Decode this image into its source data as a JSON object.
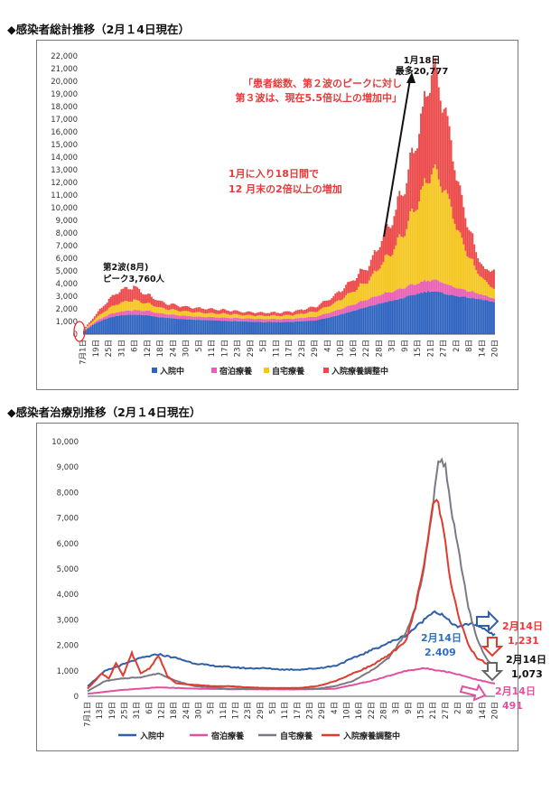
{
  "chart_data": [
    {
      "type": "bar",
      "stacked": true,
      "section_title": "◆感染者総計推移（2月１4日現在）",
      "x_tick_labels": [
        "7月1日",
        "19日",
        "25日",
        "31日",
        "6日",
        "12日",
        "18日",
        "24日",
        "30日",
        "5日",
        "11日",
        "17日",
        "23日",
        "29日",
        "5日",
        "11日",
        "17日",
        "23日",
        "29日",
        "4日",
        "10日",
        "16日",
        "22日",
        "28日",
        "3日",
        "9日",
        "15日",
        "21日",
        "27日",
        "2日",
        "8日",
        "14日",
        "20日"
      ],
      "y_ticks": [
        "0",
        "1,000",
        "2,000",
        "3,000",
        "4,000",
        "5,000",
        "6,000",
        "7,000",
        "8,000",
        "9,000",
        "10,000",
        "11,000",
        "12,000",
        "13,000",
        "14,000",
        "15,000",
        "16,000",
        "17,000",
        "18,000",
        "19,000",
        "20,000",
        "21,000",
        "22,000"
      ],
      "ylim": [
        0,
        22000
      ],
      "series": [
        {
          "name": "入院中",
          "color": "#2e64c0"
        },
        {
          "name": "宿泊療養",
          "color": "#e85fb4"
        },
        {
          "name": "自宅療養",
          "color": "#f4c61f"
        },
        {
          "name": "入院療養調整中",
          "color": "#ec4a4a"
        }
      ],
      "profile": {
        "x": [
          0,
          7,
          14,
          21,
          28,
          35,
          45,
          60,
          70,
          80,
          90,
          100,
          110,
          120,
          130,
          140,
          150,
          160,
          168,
          175,
          182,
          190,
          195,
          200,
          205,
          210,
          215,
          220,
          225,
          230
        ],
        "hospital": [
          250,
          900,
          1300,
          1500,
          1550,
          1500,
          1300,
          1150,
          1100,
          1050,
          1000,
          950,
          950,
          1000,
          1100,
          1400,
          1800,
          2200,
          2500,
          2700,
          3000,
          3300,
          3400,
          3300,
          3100,
          3000,
          2900,
          2800,
          2700,
          2500
        ],
        "lodging": [
          50,
          150,
          250,
          300,
          350,
          350,
          300,
          250,
          250,
          250,
          250,
          250,
          250,
          250,
          300,
          400,
          500,
          600,
          700,
          750,
          800,
          850,
          900,
          850,
          750,
          650,
          550,
          450,
          350,
          300
        ],
        "home": [
          50,
          250,
          500,
          700,
          800,
          600,
          400,
          350,
          300,
          300,
          250,
          250,
          250,
          300,
          400,
          600,
          1000,
          1500,
          2500,
          3500,
          5000,
          7200,
          8500,
          8000,
          6500,
          4500,
          3000,
          1800,
          1100,
          800
        ],
        "adjust": [
          50,
          300,
          700,
          1000,
          1060,
          700,
          450,
          350,
          350,
          300,
          250,
          250,
          250,
          300,
          400,
          600,
          900,
          1200,
          2000,
          2800,
          4000,
          6000,
          7977,
          7200,
          5500,
          3800,
          2500,
          1400,
          800,
          1600
        ]
      },
      "annotations": {
        "peak_date": "1月18日",
        "peak_value": "最多20,777",
        "quote": [
          "「患者総数、第２波のピークに対し",
          "第３波は、現在5.5倍以上の増加中」"
        ],
        "growth": [
          "1月に入り18日間で",
          "12 月末の2倍以上の増加"
        ],
        "wave2": [
          "第2波(8月)",
          "ピーク3,760人"
        ]
      }
    },
    {
      "type": "line",
      "section_title": "◆感染者治療別推移（2月１4日現在）",
      "x_tick_labels": [
        "7月1日",
        "13日",
        "19日",
        "25日",
        "31日",
        "6日",
        "12日",
        "18日",
        "24日",
        "30日",
        "5日",
        "11日",
        "17日",
        "23日",
        "29日",
        "5日",
        "11日",
        "17日",
        "23日",
        "29日",
        "4日",
        "10日",
        "16日",
        "22日",
        "28日",
        "3日",
        "9日",
        "15日",
        "21日",
        "27日",
        "2日",
        "8日",
        "14日",
        "20日"
      ],
      "y_ticks": [
        "0",
        "1,000",
        "2,000",
        "3,000",
        "4,000",
        "5,000",
        "6,000",
        "7,000",
        "8,000",
        "9,000",
        "10,000"
      ],
      "ylim": [
        0,
        10000
      ],
      "series": [
        {
          "name": "入院中",
          "color": "#2f5fa8",
          "x": [
            0,
            10,
            20,
            30,
            40,
            50,
            60,
            70,
            80,
            90,
            100,
            110,
            120,
            130,
            140,
            150,
            160,
            170,
            180,
            185,
            190,
            195,
            200,
            205,
            210,
            215,
            220,
            225,
            230
          ],
          "values": [
            400,
            1000,
            1250,
            1500,
            1650,
            1500,
            1300,
            1200,
            1150,
            1100,
            1100,
            1050,
            1050,
            1100,
            1200,
            1500,
            1800,
            2100,
            2400,
            2700,
            3000,
            3350,
            3200,
            2900,
            2700,
            2850,
            2800,
            2600,
            2409
          ]
        },
        {
          "name": "宿泊療養",
          "color": "#e0529f",
          "x": [
            0,
            20,
            40,
            60,
            80,
            100,
            120,
            140,
            160,
            170,
            180,
            190,
            200,
            210,
            220,
            230
          ],
          "values": [
            100,
            250,
            350,
            300,
            280,
            270,
            270,
            300,
            600,
            800,
            1000,
            1100,
            1000,
            850,
            650,
            491
          ]
        },
        {
          "name": "自宅療養",
          "color": "#7a7a84",
          "x": [
            0,
            10,
            20,
            30,
            40,
            50,
            60,
            70,
            80,
            90,
            100,
            110,
            120,
            130,
            140,
            150,
            160,
            170,
            180,
            185,
            190,
            195,
            198,
            202,
            205,
            210,
            215,
            220,
            225,
            230
          ],
          "values": [
            200,
            600,
            700,
            750,
            900,
            600,
            400,
            350,
            300,
            300,
            300,
            300,
            300,
            300,
            400,
            600,
            1000,
            1500,
            2500,
            3500,
            5000,
            7500,
            9400,
            9000,
            7500,
            5500,
            3500,
            2200,
            1500,
            1073
          ]
        },
        {
          "name": "入院療養調整中",
          "color": "#e23a2e",
          "x": [
            0,
            8,
            12,
            16,
            20,
            25,
            30,
            35,
            40,
            45,
            50,
            60,
            70,
            80,
            90,
            100,
            110,
            120,
            130,
            140,
            150,
            160,
            170,
            180,
            185,
            190,
            195,
            198,
            202,
            205,
            210,
            215,
            220,
            225,
            230
          ],
          "values": [
            300,
            900,
            700,
            1300,
            800,
            1700,
            900,
            1100,
            1600,
            800,
            500,
            450,
            400,
            400,
            350,
            330,
            320,
            330,
            400,
            600,
            900,
            1200,
            1600,
            2200,
            3500,
            5200,
            7500,
            7700,
            6000,
            4500,
            3000,
            2000,
            1500,
            1300,
            1231
          ]
        }
      ],
      "annotations": {
        "blue": [
          "2月14日",
          "2.409"
        ],
        "red": [
          "2月14日",
          "1,231"
        ],
        "gray": [
          "2月14日",
          "1,073"
        ],
        "pink": [
          "2月14日",
          "491"
        ]
      }
    }
  ]
}
